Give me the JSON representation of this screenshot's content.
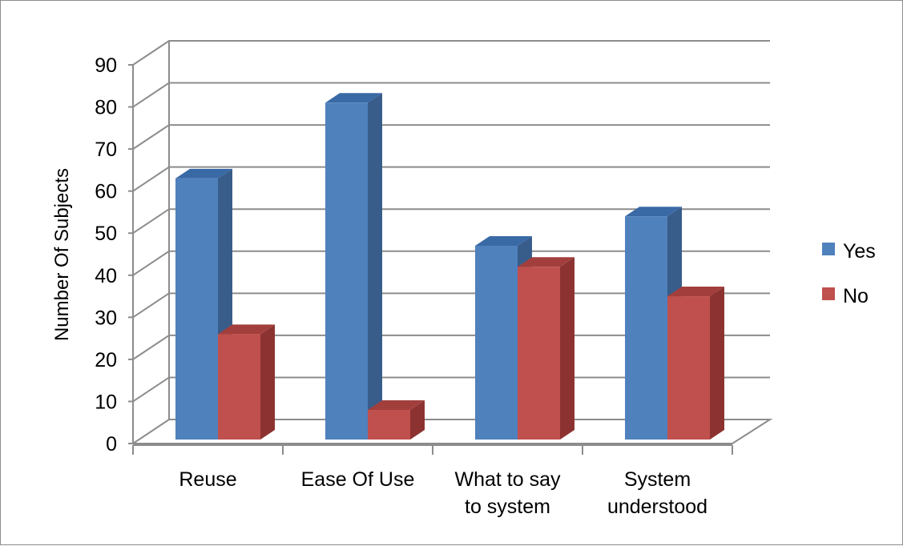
{
  "chart_data": {
    "type": "bar",
    "three_d": true,
    "title": "",
    "xlabel": "",
    "ylabel": "Number Of Subjects",
    "ylim": [
      0,
      90
    ],
    "yticks": [
      0,
      10,
      20,
      30,
      40,
      50,
      60,
      70,
      80,
      90
    ],
    "ytick_labels": [
      "0",
      "10",
      "20",
      "30",
      "40",
      "50",
      "60",
      "70",
      "80",
      "90"
    ],
    "grid": true,
    "legend_position": "right",
    "categories": [
      {
        "lines": [
          "Reuse"
        ]
      },
      {
        "lines": [
          "Ease Of Use"
        ]
      },
      {
        "lines": [
          "What to say",
          "to system"
        ]
      },
      {
        "lines": [
          "System",
          "understood"
        ]
      }
    ],
    "series": [
      {
        "name": "Yes",
        "values": [
          63,
          81,
          47,
          54
        ],
        "color": "#4f81bd",
        "side_color": "#385d8a",
        "top_color": "#3a6aa5"
      },
      {
        "name": "No",
        "values": [
          26,
          8,
          42,
          35
        ],
        "color": "#c0504d",
        "side_color": "#8c3331",
        "top_color": "#a23f3c"
      }
    ]
  }
}
